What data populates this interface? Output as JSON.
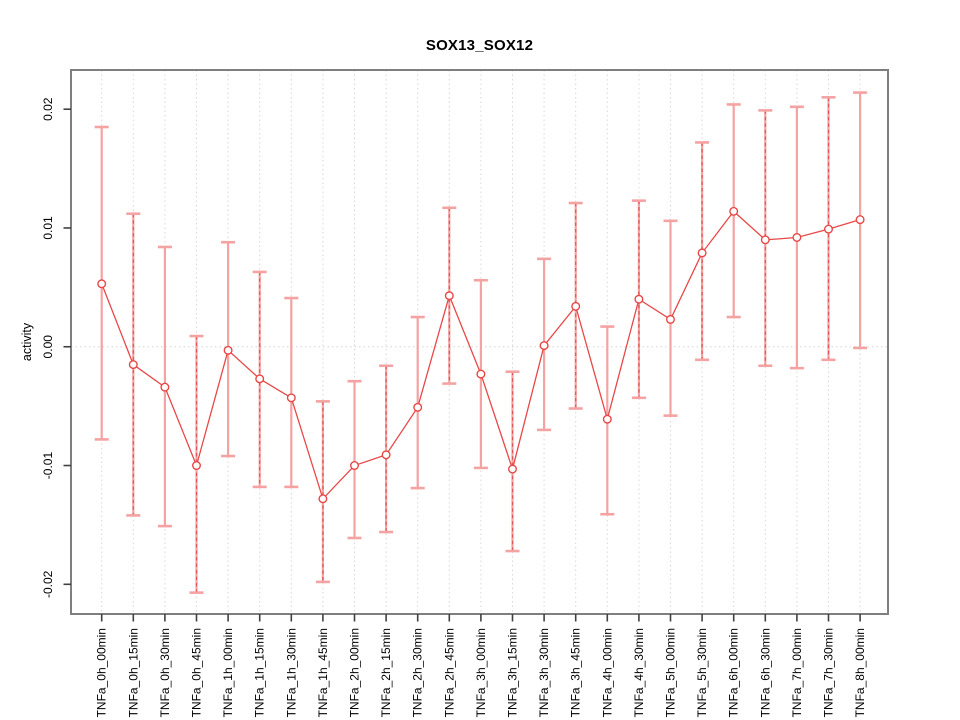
{
  "page": {
    "title": "SOX13_SOX12"
  },
  "chart_data": {
    "type": "line",
    "title": "SOX13_SOX12",
    "xlabel": "",
    "ylabel": "activity",
    "legend": "none",
    "grid": {
      "vertical_dotted_per_category": true,
      "horizontal_dotted_zero_line": true
    },
    "ylim": [
      -0.0225,
      0.0233
    ],
    "y_ticks": [
      {
        "value": -0.02,
        "label": "-0.02"
      },
      {
        "value": -0.01,
        "label": "-0.01"
      },
      {
        "value": 0.0,
        "label": "0.00"
      },
      {
        "value": 0.01,
        "label": "0.01"
      },
      {
        "value": 0.02,
        "label": "0.02"
      }
    ],
    "categories": [
      "TNFa_0h_00min",
      "TNFa_0h_15min",
      "TNFa_0h_30min",
      "TNFa_0h_45min",
      "TNFa_1h_00min",
      "TNFa_1h_15min",
      "TNFa_1h_30min",
      "TNFa_1h_45min",
      "TNFa_2h_00min",
      "TNFa_2h_15min",
      "TNFa_2h_30min",
      "TNFa_2h_45min",
      "TNFa_3h_00min",
      "TNFa_3h_15min",
      "TNFa_3h_30min",
      "TNFa_3h_45min",
      "TNFa_4h_00min",
      "TNFa_4h_30min",
      "TNFa_5h_00min",
      "TNFa_5h_30min",
      "TNFa_6h_00min",
      "TNFa_6h_30min",
      "TNFa_7h_00min",
      "TNFa_7h_30min",
      "TNFa_8h_00min"
    ],
    "series": [
      {
        "name": "SOX13_SOX12 activity",
        "marker": "open-circle",
        "values": [
          0.0053,
          -0.0015,
          -0.0034,
          -0.01,
          -0.0003,
          -0.0027,
          -0.0043,
          -0.0128,
          -0.01,
          -0.0091,
          -0.0051,
          0.0043,
          -0.0023,
          -0.0103,
          0.0001,
          0.0034,
          -0.0061,
          0.004,
          0.0023,
          0.0079,
          0.0114,
          0.009,
          0.0092,
          0.0099,
          0.0107
        ],
        "error_upper": [
          0.0185,
          0.0112,
          0.0084,
          0.0009,
          0.0088,
          0.0063,
          0.0041,
          -0.0046,
          -0.0029,
          -0.0016,
          0.0025,
          0.0117,
          0.0056,
          -0.0021,
          0.0074,
          0.0121,
          0.0017,
          0.0123,
          0.0106,
          0.0172,
          0.0204,
          0.0199,
          0.0202,
          0.021,
          0.0214
        ],
        "error_lower": [
          -0.0078,
          -0.0142,
          -0.0151,
          -0.0207,
          -0.0092,
          -0.0118,
          -0.0118,
          -0.0198,
          -0.0161,
          -0.0156,
          -0.0119,
          -0.0031,
          -0.0102,
          -0.0172,
          -0.007,
          -0.0052,
          -0.0141,
          -0.0043,
          -0.0058,
          -0.0011,
          0.0025,
          -0.0016,
          -0.0018,
          -0.0011,
          -0.0001
        ]
      }
    ],
    "colors": {
      "line": "#e84848",
      "point_stroke": "#e84848",
      "point_fill": "#ffffff",
      "error_bar": "#f5a2a2",
      "error_bar_dashed": "#e05555",
      "gridline": "#d8d8d8",
      "zero_line": "#dcdcdc",
      "box": "#7f7f7f",
      "tick": "#404040",
      "text": "#000000",
      "background": "#ffffff"
    }
  }
}
